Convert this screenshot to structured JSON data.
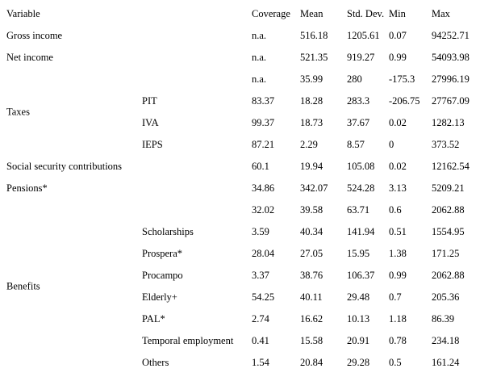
{
  "table": {
    "columns": [
      "Variable",
      "Coverage",
      "Mean",
      "Std. Dev.",
      "Min",
      "Max"
    ],
    "rows": [
      {
        "label": "Gross income",
        "values": [
          "n.a.",
          "516.18",
          "1205.61",
          "0.07",
          "94252.71"
        ]
      },
      {
        "label": "Net income",
        "values": [
          "n.a.",
          "521.35",
          "919.27",
          "0.99",
          "54093.98"
        ]
      },
      {
        "group": "Taxes",
        "items": [
          {
            "values": [
              "n.a.",
              "35.99",
              "280",
              "-175.3",
              "27996.19"
            ]
          },
          {
            "sub": "PIT",
            "values": [
              "83.37",
              "18.28",
              "283.3",
              "-206.75",
              "27767.09"
            ]
          },
          {
            "sub": "IVA",
            "values": [
              "99.37",
              "18.73",
              "37.67",
              "0.02",
              "1282.13"
            ]
          },
          {
            "sub": "IEPS",
            "values": [
              "87.21",
              "2.29",
              "8.57",
              "0",
              "373.52"
            ]
          }
        ]
      },
      {
        "label": "Social security contributions",
        "values": [
          "60.1",
          "19.94",
          "105.08",
          "0.02",
          "12162.54"
        ]
      },
      {
        "label": "Pensions*",
        "values": [
          "34.86",
          "342.07",
          "524.28",
          "3.13",
          "5209.21"
        ]
      },
      {
        "group": "Benefits",
        "items": [
          {
            "values": [
              "32.02",
              "39.58",
              "63.71",
              "0.6",
              "2062.88"
            ]
          },
          {
            "sub": "Scholarships",
            "values": [
              "3.59",
              "40.34",
              "141.94",
              "0.51",
              "1554.95"
            ]
          },
          {
            "sub": "Prospera*",
            "values": [
              "28.04",
              "27.05",
              "15.95",
              "1.38",
              "171.25"
            ]
          },
          {
            "sub": "Procampo",
            "values": [
              "3.37",
              "38.76",
              "106.37",
              "0.99",
              "2062.88"
            ]
          },
          {
            "sub": "Elderly+",
            "values": [
              "54.25",
              "40.11",
              "29.48",
              "0.7",
              "205.36"
            ]
          },
          {
            "sub": "PAL*",
            "values": [
              "2.74",
              "16.62",
              "10.13",
              "1.18",
              "86.39"
            ]
          },
          {
            "sub": "Temporal employment",
            "values": [
              "0.41",
              "15.58",
              "20.91",
              "0.78",
              "234.18"
            ]
          },
          {
            "sub": "Others",
            "values": [
              "1.54",
              "20.84",
              "29.28",
              "0.5",
              "161.24"
            ]
          }
        ]
      }
    ]
  }
}
